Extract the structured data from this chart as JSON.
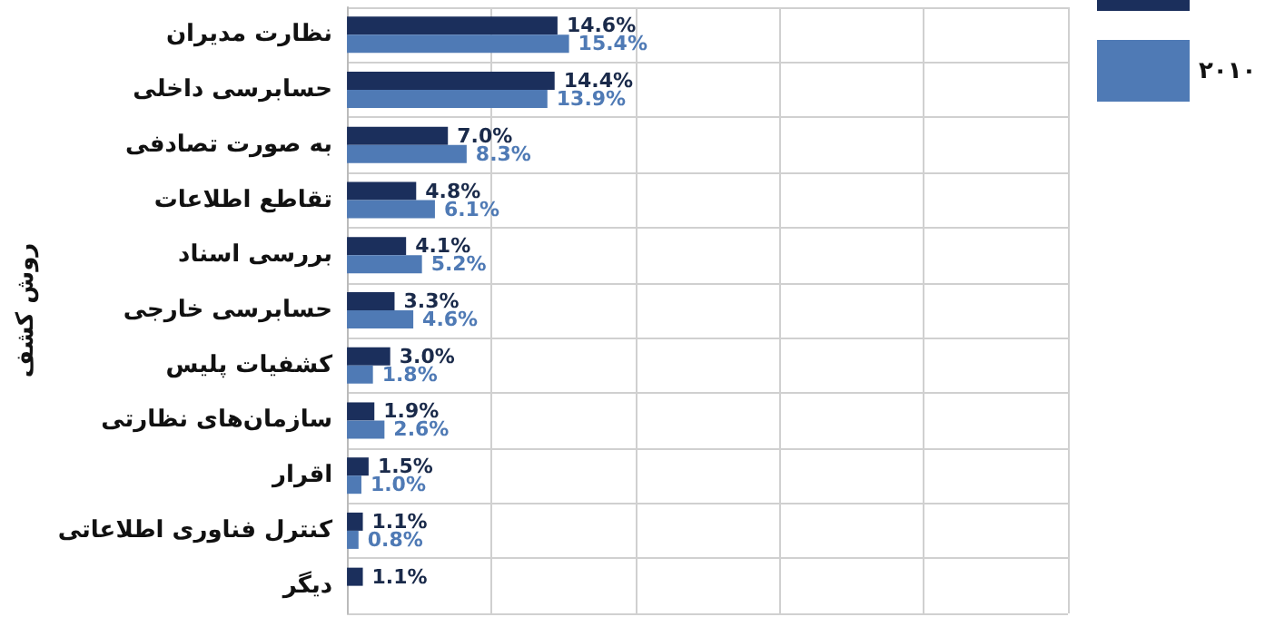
{
  "chart_data": {
    "type": "bar",
    "orientation": "horizontal",
    "ylabel": "روش کشف",
    "categories": [
      "نظارت مدیران",
      "حسابرسی داخلی",
      "به صورت تصادفی",
      "تقاطع اطلاعات",
      "بررسی اسناد",
      "حسابرسی خارجی",
      "کشفیات پلیس",
      "سازمان‌های نظارتی",
      "اقرار",
      "کنترل فناوری اطلاعاتی",
      "دیگر"
    ],
    "series": [
      {
        "color": "#1b2f5c",
        "values": [
          14.6,
          14.4,
          7.0,
          4.8,
          4.1,
          3.3,
          3.0,
          1.9,
          1.5,
          1.1,
          1.1
        ],
        "value_labels": [
          "14.6%",
          "14.4%",
          "7.0%",
          "4.8%",
          "4.1%",
          "3.3%",
          "3.0%",
          "1.9%",
          "1.5%",
          "1.1%",
          "1.1%"
        ]
      },
      {
        "name": "۲۰۱۰",
        "color": "#4f7ab5",
        "values": [
          15.4,
          13.9,
          8.3,
          6.1,
          5.2,
          4.6,
          1.8,
          2.6,
          1.0,
          0.8,
          null
        ],
        "value_labels": [
          "15.4%",
          "13.9%",
          "8.3%",
          "6.1%",
          "5.2%",
          "4.6%",
          "1.8%",
          "2.6%",
          "1.0%",
          "0.8%",
          null
        ]
      }
    ],
    "xlim": [
      0,
      50
    ],
    "xticks": [
      {
        "value": 0,
        "label": null
      },
      {
        "value": 10,
        "label": null
      },
      {
        "value": 20,
        "label": null
      },
      {
        "value": 30,
        "label": null
      },
      {
        "value": 40,
        "label": null
      },
      {
        "value": 50,
        "label": null
      }
    ],
    "tick_labels": "y",
    "grid": true,
    "legend": "top right"
  }
}
